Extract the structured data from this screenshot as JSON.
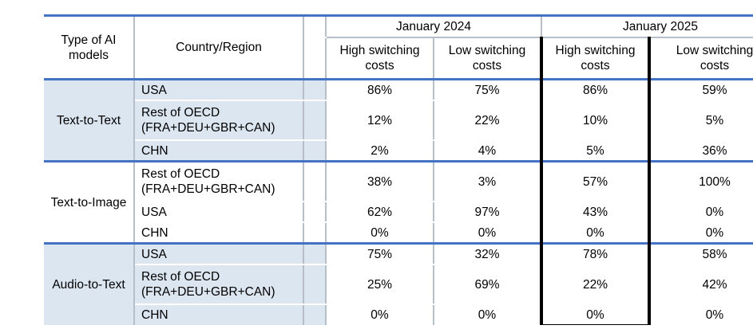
{
  "header": {
    "type_col": "Type of AI models",
    "country_col": "Country/Region",
    "periods": [
      "January 2024",
      "January 2025"
    ],
    "cost_cols": [
      "High switching costs",
      "Low switching costs",
      "High switching costs",
      "Low switching costs"
    ]
  },
  "groups": [
    {
      "type": "Text-to-Text",
      "shaded": true,
      "rows": [
        {
          "country": "USA",
          "values": [
            "86%",
            "75%",
            "86%",
            "59%"
          ]
        },
        {
          "country": "Rest of OECD (FRA+DEU+GBR+CAN)",
          "values": [
            "12%",
            "22%",
            "10%",
            "5%"
          ]
        },
        {
          "country": "CHN",
          "values": [
            "2%",
            "4%",
            "5%",
            "36%"
          ]
        }
      ]
    },
    {
      "type": "Text-to-Image",
      "shaded": false,
      "rows": [
        {
          "country": "Rest of OECD (FRA+DEU+GBR+CAN)",
          "values": [
            "38%",
            "3%",
            "57%",
            "100%"
          ]
        },
        {
          "country": "USA",
          "values": [
            "62%",
            "97%",
            "43%",
            "0%"
          ]
        },
        {
          "country": "CHN",
          "values": [
            "0%",
            "0%",
            "0%",
            "0%"
          ]
        }
      ]
    },
    {
      "type": "Audio-to-Text",
      "shaded": true,
      "rows": [
        {
          "country": "USA",
          "values": [
            "75%",
            "32%",
            "78%",
            "58%"
          ]
        },
        {
          "country": "Rest of OECD (FRA+DEU+GBR+CAN)",
          "values": [
            "25%",
            "69%",
            "22%",
            "42%"
          ]
        },
        {
          "country": "CHN",
          "values": [
            "0%",
            "0%",
            "0%",
            "0%"
          ]
        }
      ]
    }
  ],
  "colors": {
    "shade": "#dce6f1",
    "rule": "#4472c4",
    "highlight": "#000000"
  }
}
